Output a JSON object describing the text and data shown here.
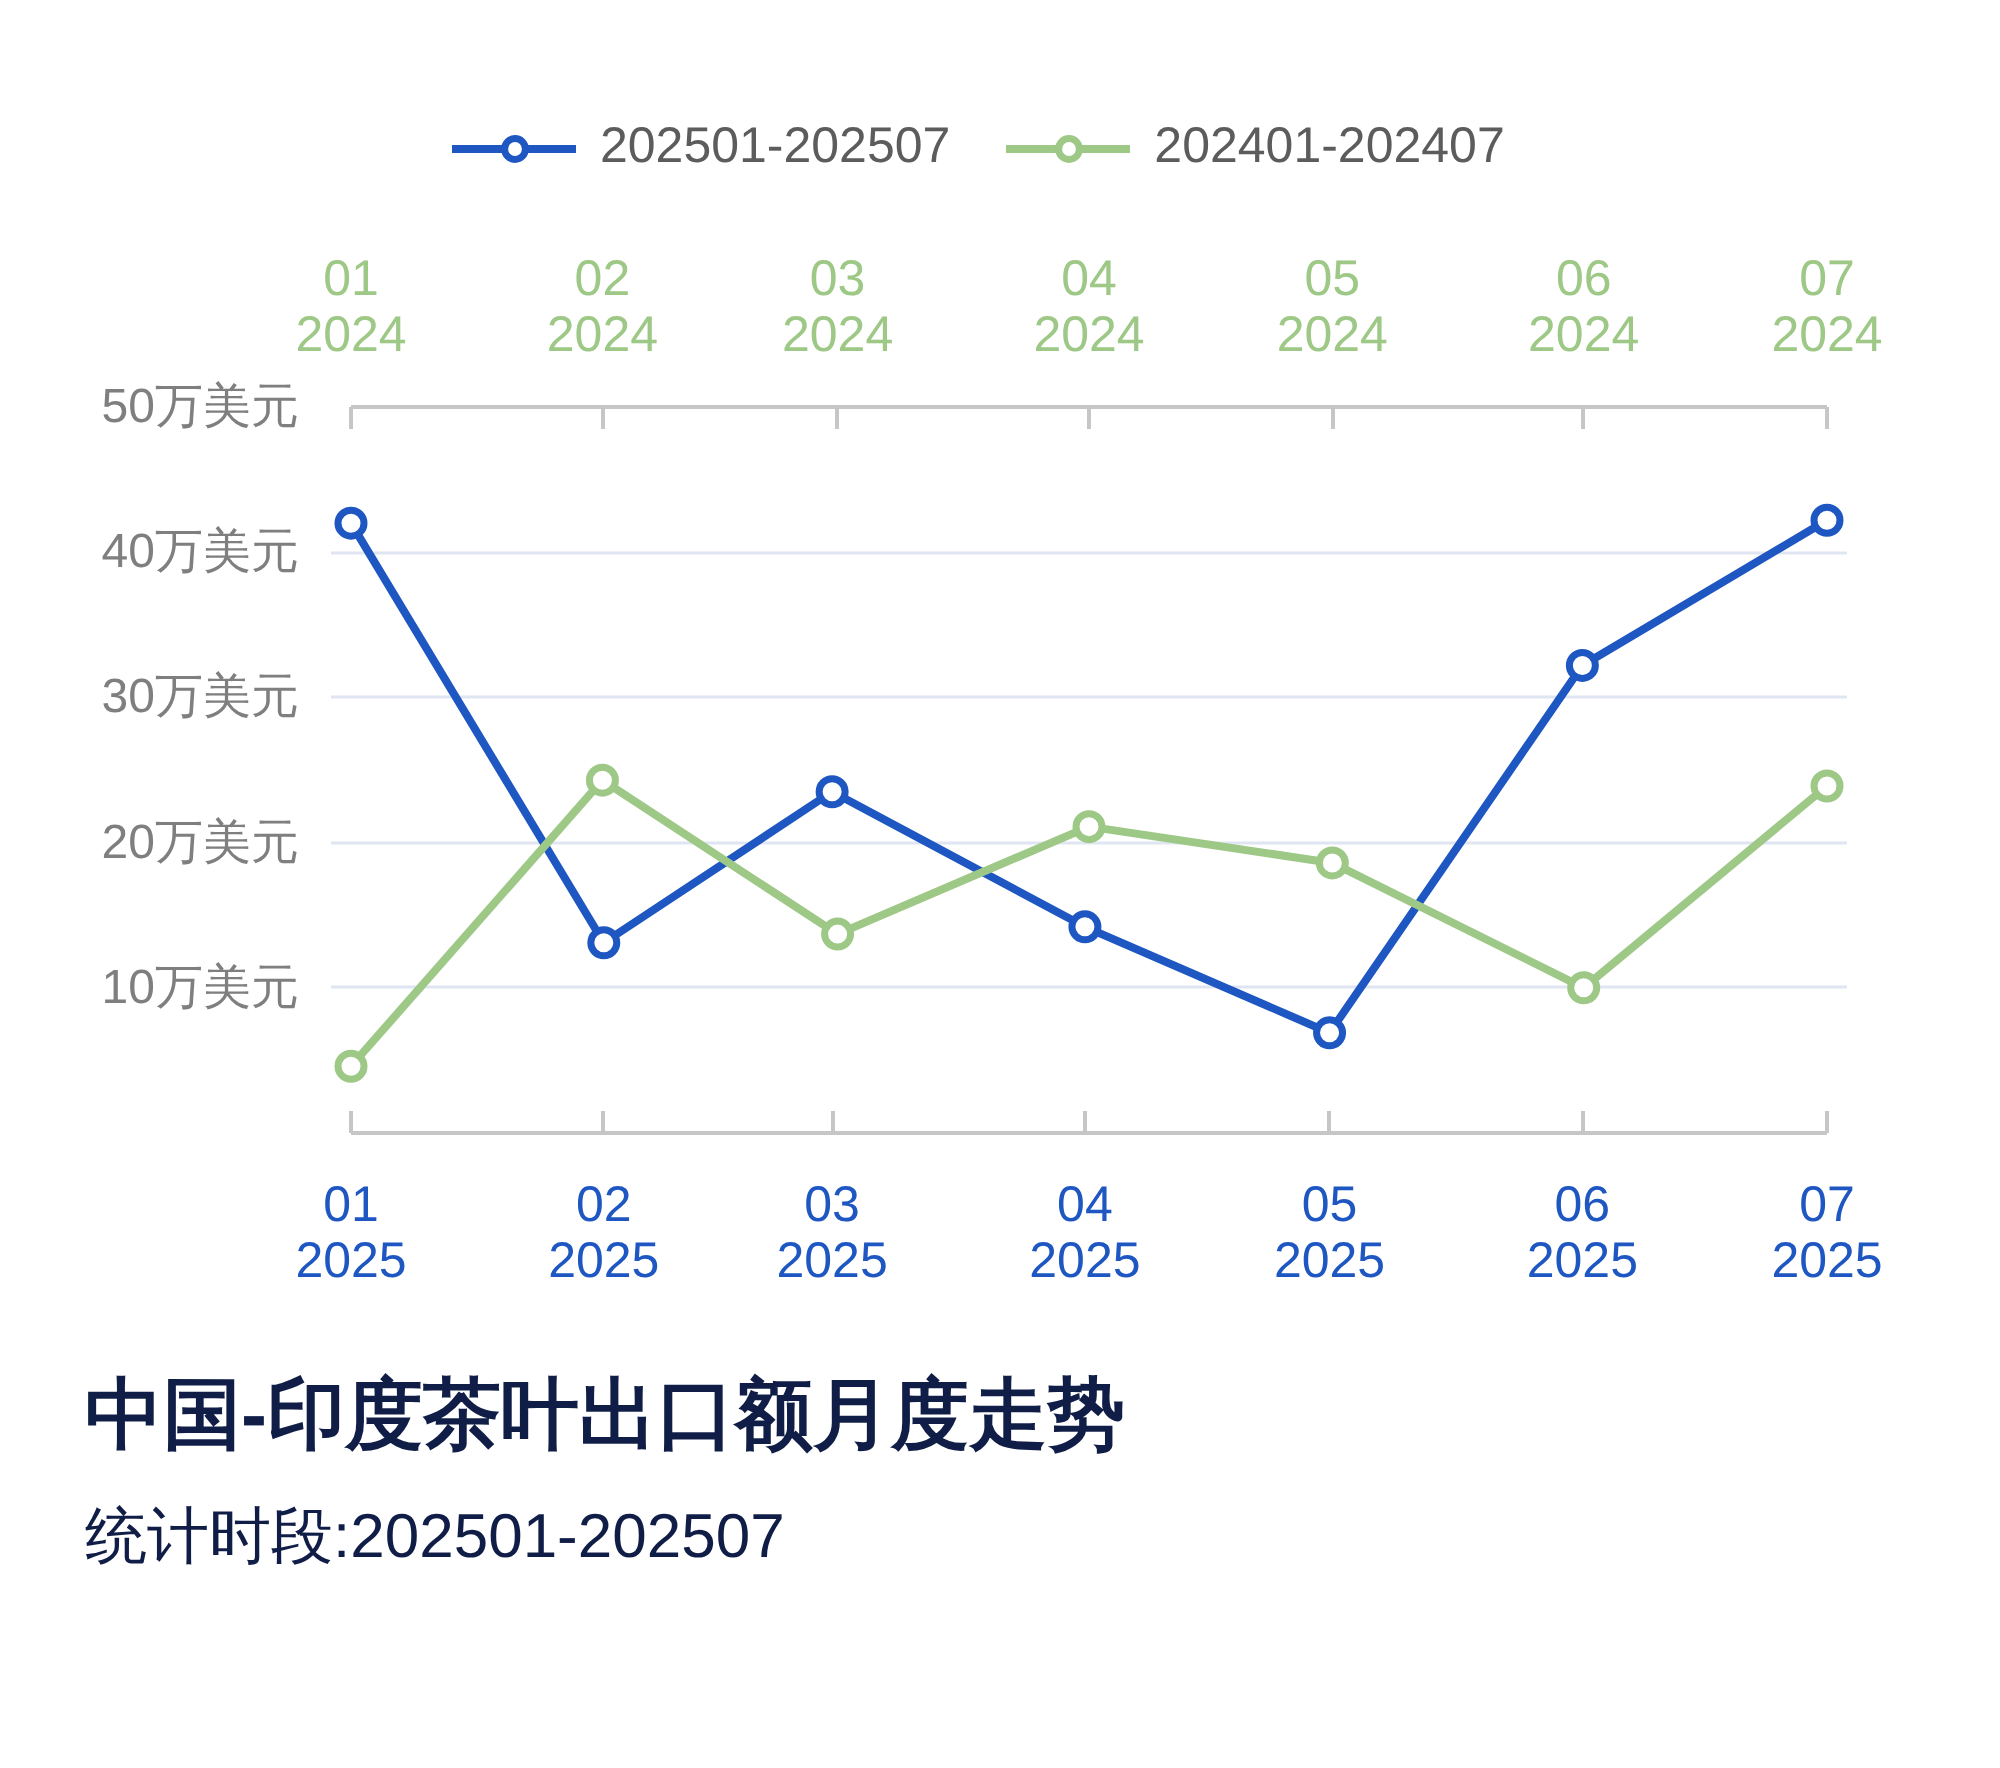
{
  "chart_data": {
    "type": "line",
    "title": "中国-印度茶叶出口额月度走势",
    "subtitle": "统计时段:202501-202507",
    "x": [
      "2025-01",
      "2025-02",
      "2025-03",
      "2025-04",
      "2025-05",
      "2025-06",
      "2025-07"
    ],
    "xlim": [
      "2025-01",
      "2025-07"
    ],
    "xticks": [
      {
        "value": "2025-01",
        "label": "01\n2025"
      },
      {
        "value": "2025-02",
        "label": "02\n2025"
      },
      {
        "value": "2025-03",
        "label": "03\n2025"
      },
      {
        "value": "2025-04",
        "label": "04\n2025"
      },
      {
        "value": "2025-05",
        "label": "05\n2025"
      },
      {
        "value": "2025-06",
        "label": "06\n2025"
      },
      {
        "value": "2025-07",
        "label": "07\n2025"
      }
    ],
    "x2lim": [
      "2024-01",
      "2024-07"
    ],
    "x2ticks": [
      {
        "value": "2024-01",
        "label": "01\n2024"
      },
      {
        "value": "2024-02",
        "label": "02\n2024"
      },
      {
        "value": "2024-03",
        "label": "03\n2024"
      },
      {
        "value": "2024-04",
        "label": "04\n2024"
      },
      {
        "value": "2024-05",
        "label": "05\n2024"
      },
      {
        "value": "2024-06",
        "label": "06\n2024"
      },
      {
        "value": "2024-07",
        "label": "07\n2024"
      }
    ],
    "ylim": [
      0,
      50
    ],
    "yticks": [
      {
        "value": 10,
        "label": "10万美元"
      },
      {
        "value": 20,
        "label": "20万美元"
      },
      {
        "value": 30,
        "label": "30万美元"
      },
      {
        "value": 40,
        "label": "40万美元"
      },
      {
        "value": 50,
        "label": "50万美元"
      }
    ],
    "series": [
      {
        "name": "202501-202507",
        "color": "#1e56c2",
        "values": [
          42.0,
          13.1,
          23.5,
          14.2,
          6.9,
          32.2,
          42.2
        ]
      },
      {
        "name": "202401-202407",
        "color": "#9dc886",
        "axis": "x2",
        "x": [
          "2024-01",
          "2024-02",
          "2024-03",
          "2024-04",
          "2024-05",
          "2024-06",
          "2024-07"
        ],
        "values": [
          4.6,
          24.3,
          13.7,
          21.1,
          18.6,
          10.0,
          23.9
        ]
      }
    ],
    "grid": "y",
    "legend": "top",
    "marker": "circle",
    "line_style": "solid"
  }
}
